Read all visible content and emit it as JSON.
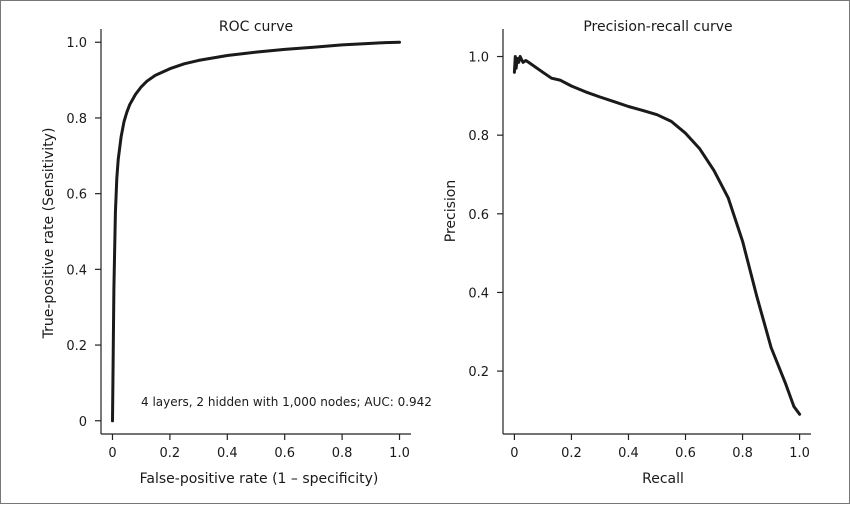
{
  "chart_data": [
    {
      "type": "line",
      "title": "ROC curve",
      "xlabel": "False-positive rate (1 – specificity)",
      "ylabel": "True-positive rate (Sensitivity)",
      "xlim": [
        -0.04,
        1.04
      ],
      "ylim": [
        -0.035,
        1.035
      ],
      "xticks": [
        "0",
        "0.2",
        "0.4",
        "0.6",
        "0.8",
        "1.0"
      ],
      "xtick_values": [
        0,
        0.2,
        0.4,
        0.6,
        0.8,
        1.0
      ],
      "yticks": [
        "0",
        "0.2",
        "0.4",
        "0.6",
        "0.8",
        "1.0"
      ],
      "ytick_values": [
        0,
        0.2,
        0.4,
        0.6,
        0.8,
        1.0
      ],
      "annotation": "4 layers, 2 hidden with 1,000 nodes; AUC: 0.942",
      "grid": false,
      "series": [
        {
          "x": [
            0,
            0.002,
            0.005,
            0.01,
            0.015,
            0.02,
            0.03,
            0.04,
            0.05,
            0.06,
            0.08,
            0.1,
            0.12,
            0.15,
            0.2,
            0.25,
            0.3,
            0.4,
            0.5,
            0.6,
            0.7,
            0.8,
            0.9,
            0.95,
            1.0
          ],
          "y": [
            0,
            0.15,
            0.35,
            0.55,
            0.64,
            0.69,
            0.75,
            0.79,
            0.815,
            0.835,
            0.862,
            0.882,
            0.897,
            0.913,
            0.93,
            0.943,
            0.952,
            0.965,
            0.974,
            0.981,
            0.987,
            0.993,
            0.997,
            0.999,
            1.0
          ]
        }
      ]
    },
    {
      "type": "line",
      "title": "Precision-recall curve",
      "xlabel": "Recall",
      "ylabel": "Precision",
      "xlim": [
        -0.04,
        1.04
      ],
      "ylim": [
        0.04,
        1.07
      ],
      "xticks": [
        "0",
        "0.2",
        "0.4",
        "0.6",
        "0.8",
        "1.0"
      ],
      "xtick_values": [
        0,
        0.2,
        0.4,
        0.6,
        0.8,
        1.0
      ],
      "yticks": [
        "0.2",
        "0.4",
        "0.6",
        "0.8",
        "1.0"
      ],
      "ytick_values": [
        0.2,
        0.4,
        0.6,
        0.8,
        1.0
      ],
      "grid": false,
      "series": [
        {
          "x": [
            0,
            0.003,
            0.006,
            0.01,
            0.015,
            0.02,
            0.03,
            0.04,
            0.05,
            0.07,
            0.1,
            0.13,
            0.16,
            0.2,
            0.25,
            0.3,
            0.35,
            0.4,
            0.45,
            0.5,
            0.55,
            0.6,
            0.65,
            0.7,
            0.75,
            0.8,
            0.85,
            0.9,
            0.95,
            0.98,
            1.0
          ],
          "y": [
            0.96,
            1.0,
            0.97,
            0.995,
            0.985,
            1.0,
            0.985,
            0.99,
            0.985,
            0.975,
            0.96,
            0.945,
            0.94,
            0.925,
            0.91,
            0.897,
            0.885,
            0.873,
            0.863,
            0.852,
            0.835,
            0.805,
            0.765,
            0.71,
            0.64,
            0.53,
            0.39,
            0.26,
            0.17,
            0.11,
            0.09
          ]
        }
      ]
    }
  ]
}
